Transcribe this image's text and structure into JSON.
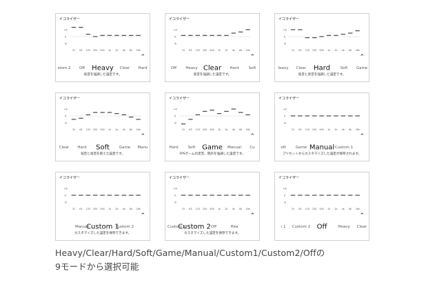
{
  "panel_title": "イコライザー",
  "freq_labels": [
    "31",
    "63",
    "125",
    "250",
    "500",
    "1k",
    "2k",
    "4k",
    "8k",
    "16k"
  ],
  "level_labels": [
    "+6",
    "0",
    "-6"
  ],
  "panels": [
    {
      "modes": [
        "stom 2",
        "Off",
        "Heavy",
        "Clear",
        "Hard"
      ],
      "selected": 2,
      "description": "低音を強調した設定です。",
      "levels": [
        8,
        8,
        2,
        0,
        1,
        1,
        1,
        1,
        1,
        1
      ]
    },
    {
      "modes": [
        "Off",
        "Heavy",
        "Clear",
        "Hard",
        "Soft"
      ],
      "selected": 2,
      "description": "高音を強調した設定です。",
      "levels": [
        1,
        1,
        1,
        1,
        1,
        1,
        1,
        3,
        4,
        6
      ]
    },
    {
      "modes": [
        "leavy",
        "Clear",
        "Hard",
        "Soft",
        "Game"
      ],
      "selected": 2,
      "description": "低音と高音を強調した設定です。",
      "levels": [
        6,
        6,
        -1,
        -1,
        0,
        1,
        1,
        2,
        3,
        5
      ]
    },
    {
      "modes": [
        "Clear",
        "Hard",
        "Soft",
        "Game",
        "Manu"
      ],
      "selected": 2,
      "description": "低音と高音を抑えた設定です。",
      "levels": [
        -3,
        -2,
        1,
        3,
        3,
        3,
        2,
        1,
        -1,
        -3
      ]
    },
    {
      "modes": [
        "Hard",
        "Soft",
        "Game",
        "Manual",
        "Cu"
      ],
      "selected": 2,
      "description": "FPSゲームの足音、銃声を強調した設定です。",
      "levels": [
        -7,
        -3,
        1,
        4,
        5,
        2,
        4,
        6,
        3,
        1
      ]
    },
    {
      "modes": [
        "oft",
        "Game",
        "Manual",
        "Custom 1",
        ""
      ],
      "selected": 2,
      "description": "プリセットからカスタマイズした設定が保存されます。",
      "levels": [
        0,
        0,
        0,
        0,
        0,
        0,
        0,
        0,
        0,
        0
      ]
    },
    {
      "modes": [
        "",
        "Manual",
        "Custom 1",
        "Custom 2",
        ""
      ],
      "selected": 2,
      "description": "カスタマイズした設定を保存できます。",
      "levels": [
        0,
        0,
        0,
        0,
        0,
        0,
        0,
        0,
        0,
        0
      ]
    },
    {
      "modes": [
        "Custom 1",
        "Custom 2",
        "Off",
        "Hea",
        ""
      ],
      "selected": 1,
      "description": "カスタマイズした設定を保存できます。",
      "levels": [
        0,
        0,
        0,
        0,
        0,
        0,
        0,
        0,
        0,
        0
      ]
    },
    {
      "modes": [
        "ι 1",
        "Custom 2",
        "Off",
        "Heavy",
        "Clear"
      ],
      "selected": 2,
      "description": "",
      "levels": [
        0,
        0,
        0,
        0,
        0,
        0,
        0,
        0,
        0,
        0
      ]
    }
  ],
  "caption": {
    "line1": "Heavy/Clear/Hard/Soft/Game/Manual/Custom1/Custom2/Offの",
    "line2": "9モードから選択可能"
  }
}
